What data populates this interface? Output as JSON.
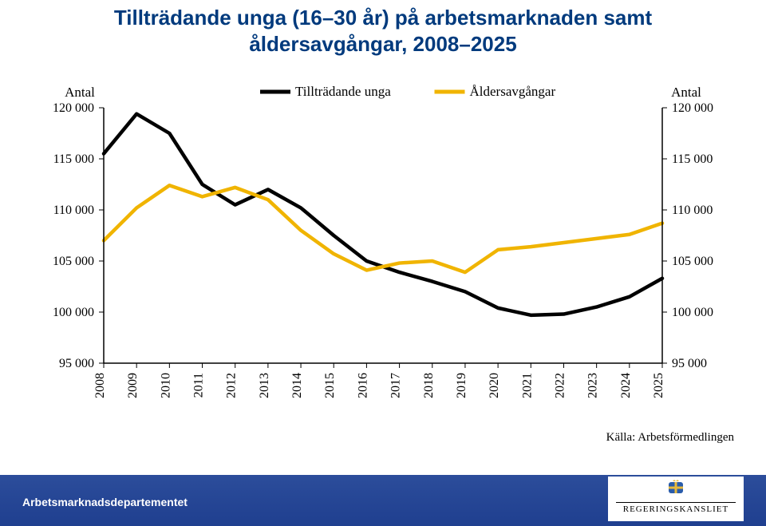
{
  "title_line1": "Tillträdande unga (16–30 år) på arbetsmarknaden samt",
  "title_line2": "åldersavgångar, 2008–2025",
  "title_color": "#003a7d",
  "title_fontsize": 26,
  "chart": {
    "type": "line",
    "background_color": "#ffffff",
    "axis_color": "#000000",
    "axis_stroke_width": 1.5,
    "y_axis_label_left": "Antal",
    "y_axis_label_right": "Antal",
    "axis_label_fontsize": 17,
    "tick_fontsize": 16,
    "legend_fontsize": 17,
    "legend_sample_width": 38,
    "legend_sample_stroke": 5,
    "xlim": [
      2008,
      2025
    ],
    "ylim": [
      95000,
      120000
    ],
    "ytick_step": 5000,
    "y_ticks": [
      95000,
      100000,
      105000,
      110000,
      115000,
      120000
    ],
    "y_tick_labels": [
      "95 000",
      "100 000",
      "105 000",
      "110 000",
      "115 000",
      "120 000"
    ],
    "x_ticks": [
      2008,
      2009,
      2010,
      2011,
      2012,
      2013,
      2014,
      2015,
      2016,
      2017,
      2018,
      2019,
      2020,
      2021,
      2022,
      2023,
      2024,
      2025
    ],
    "x_tick_labels": [
      "2008",
      "2009",
      "2010",
      "2011",
      "2012",
      "2013",
      "2014",
      "2015",
      "2016",
      "2017",
      "2018",
      "2019",
      "2020",
      "2021",
      "2022",
      "2023",
      "2024",
      "2025"
    ],
    "x_tick_rotation": -90,
    "series": [
      {
        "name": "Tillträdande unga",
        "color": "#000000",
        "stroke_width": 4.5,
        "x": [
          2008,
          2009,
          2010,
          2011,
          2012,
          2013,
          2014,
          2015,
          2016,
          2017,
          2018,
          2019,
          2020,
          2021,
          2022,
          2023,
          2024,
          2025
        ],
        "y": [
          115500,
          119400,
          117500,
          112500,
          110500,
          112000,
          110200,
          107500,
          105000,
          103900,
          103000,
          102000,
          100400,
          99700,
          99800,
          100500,
          101500,
          103300
        ]
      },
      {
        "name": "Åldersavgångar",
        "color": "#f0b400",
        "stroke_width": 4.5,
        "x": [
          2008,
          2009,
          2010,
          2011,
          2012,
          2013,
          2014,
          2015,
          2016,
          2017,
          2018,
          2019,
          2020,
          2021,
          2022,
          2023,
          2024,
          2025
        ],
        "y": [
          107000,
          110200,
          112400,
          111300,
          112200,
          111000,
          108000,
          105700,
          104100,
          104800,
          105000,
          103900,
          106100,
          106400,
          106800,
          107200,
          107600,
          108700
        ]
      }
    ]
  },
  "source_label": "Källa: Arbetsförmedlingen",
  "source_fontsize": 15,
  "footer": {
    "bar_color_top": "#2c4d9b",
    "bar_color_bottom": "#1f3f8f",
    "department": "Arbetsmarknadsdepartementet",
    "org_label": "REGERINGSKANSLIET",
    "crest_blue": "#2a5caa",
    "crest_gold": "#e7b93c"
  }
}
